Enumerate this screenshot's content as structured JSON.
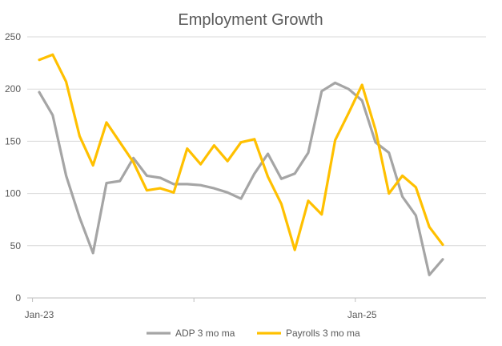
{
  "chart_data": {
    "type": "line",
    "title": "Employment Growth",
    "xlabel": "",
    "ylabel": "",
    "ylim": [
      0,
      250
    ],
    "yticks": [
      0,
      50,
      100,
      150,
      200,
      250
    ],
    "x_tick_labels": [
      {
        "label": "Jan-23",
        "index": 0
      },
      {
        "label": "Jan-25",
        "index": 24
      }
    ],
    "n_periods": 34,
    "grid": true,
    "legend_position": "bottom",
    "series": [
      {
        "name": "ADP 3 mo ma",
        "color": "#a5a5a5",
        "values": [
          197,
          175,
          117,
          77,
          43,
          110,
          112,
          134,
          117,
          115,
          109,
          109,
          108,
          105,
          101,
          95,
          119,
          138,
          114,
          119,
          139,
          198,
          206,
          200,
          189,
          149,
          139,
          97,
          79,
          22,
          37
        ]
      },
      {
        "name": "Payrolls 3 mo ma",
        "color": "#ffc000",
        "values": [
          228,
          233,
          207,
          155,
          127,
          168,
          149,
          130,
          103,
          105,
          101,
          143,
          128,
          146,
          131,
          149,
          152,
          116,
          90,
          46,
          93,
          80,
          151,
          177,
          204,
          161,
          100,
          117,
          106,
          68,
          51
        ]
      }
    ]
  }
}
